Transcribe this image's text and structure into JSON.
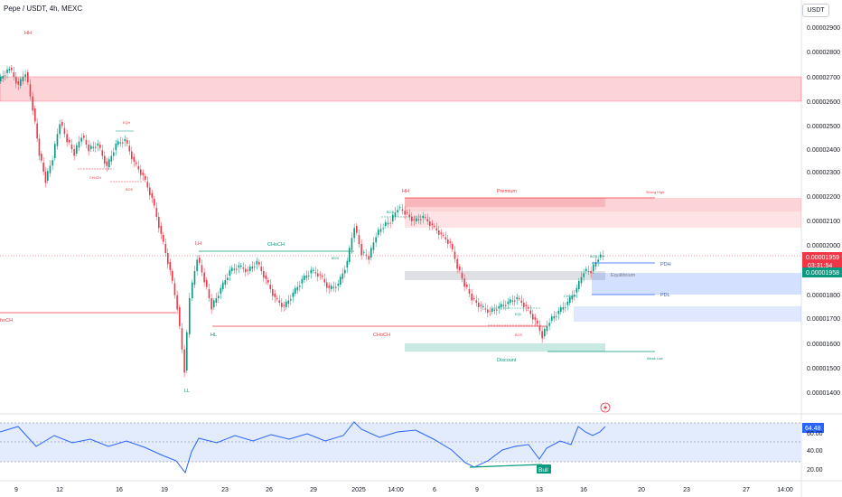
{
  "header": {
    "title": "Pepe / USDT, 4h, MEXC",
    "currency_button": "USDT"
  },
  "price_scale": {
    "labels": [
      "0.00002900",
      "0.00002800",
      "0.00002700",
      "0.00002600",
      "0.00002500",
      "0.00002400",
      "0.00002300",
      "0.00002200",
      "0.00002100",
      "0.00002000",
      "0.00001800",
      "0.00001700",
      "0.00001600",
      "0.00001500",
      "0.00001400"
    ],
    "current_price": "0.00001959",
    "countdown": "03:31:54",
    "second_price": "0.00001958",
    "colors": {
      "up": "#089981",
      "down": "#f23645",
      "current_tag": "#f23645",
      "second_tag": "#089981"
    }
  },
  "time_axis": {
    "labels": [
      "9",
      "12",
      "16",
      "19",
      "23",
      "26",
      "29",
      "2025",
      "14:00",
      "6",
      "9",
      "13",
      "16",
      "20",
      "23",
      "27",
      "14:00"
    ]
  },
  "annotations": {
    "hh_top": "HH",
    "hh_mid": "HH",
    "lh": "LH",
    "hl": "HL",
    "ll": "LL",
    "choch_left": "hoCH",
    "choch_upper": "CHoCH",
    "choch_lower": "CHoCH",
    "premium": "Premium",
    "discount": "Discount",
    "equilibrium": "Equilibrium",
    "pdh": "PDH",
    "pdl": "PDL",
    "strong_high": "Strong High",
    "weak_low": "Weak Low",
    "bos": "BOS",
    "eqh": "EQH",
    "eql": "EQL",
    "small_choch": "CHoCH"
  },
  "rsi": {
    "value": "64.48",
    "scale": [
      "60.00",
      "40.00",
      "20.00"
    ],
    "divergence_label": "Bull",
    "colors": {
      "line": "#2962ff",
      "band": "#e3ecfd",
      "value_tag": "#2962ff",
      "bull": "#089981"
    }
  }
}
